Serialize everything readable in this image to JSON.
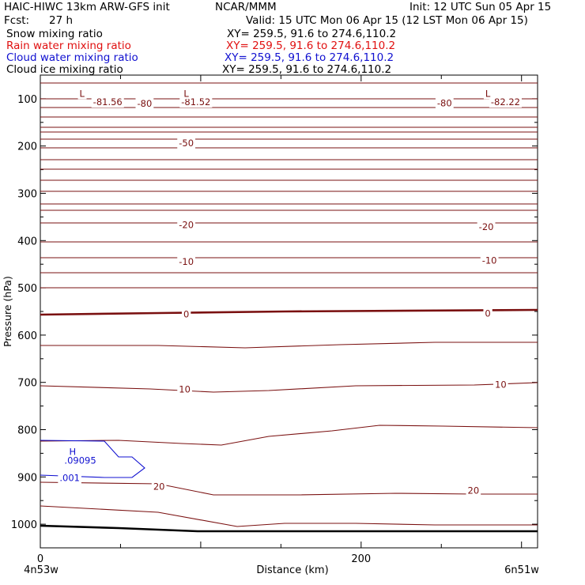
{
  "header": {
    "model": "HAIC-HIWC 13km ARW-GFS init",
    "org": "NCAR/MMM",
    "init": "Init: 12 UTC Sun 05 Apr 15",
    "fcst_label": "Fcst:",
    "fcst_value": "27 h",
    "valid": "Valid: 15 UTC Mon 06 Apr 15 (12 LST Mon 06 Apr 15)",
    "fields": [
      {
        "label": "Snow mixing ratio",
        "xy": "XY= 259.5, 91.6 to 274.6,110.2",
        "color": "#000000"
      },
      {
        "label": "Rain water mixing ratio",
        "xy": "XY= 259.5, 91.6 to 274.6,110.2",
        "color": "#e01010"
      },
      {
        "label": "Cloud water mixing ratio",
        "xy": "XY= 259.5, 91.6 to 274.6,110.2",
        "color": "#1010d0"
      },
      {
        "label": "Cloud ice mixing ratio",
        "xy": "XY= 259.5, 91.6 to 274.6,110.2",
        "color": "#000000"
      }
    ]
  },
  "chart_data": {
    "type": "line",
    "title": "",
    "xlabel": "Distance (km)",
    "ylabel": "Pressure (hPa)",
    "x_ticks": [
      0,
      200
    ],
    "y_ticks": [
      100,
      200,
      300,
      400,
      500,
      600,
      700,
      800,
      900,
      1000
    ],
    "xlim": [
      0,
      310
    ],
    "ylim": [
      1050,
      50
    ],
    "x_endpoints": {
      "left": "4n53w",
      "right": "6n51w"
    },
    "temperature_contour_color": "#7a1010",
    "temperature_labels": [
      {
        "x": 42,
        "p": 107,
        "text": "-81.56"
      },
      {
        "x": 65,
        "p": 110,
        "text": "-80"
      },
      {
        "x": 97,
        "p": 107,
        "text": "-81.52"
      },
      {
        "x": 252,
        "p": 109,
        "text": "-80"
      },
      {
        "x": 290,
        "p": 107,
        "text": "-82.22"
      },
      {
        "x": 91,
        "p": 194,
        "text": "-50"
      },
      {
        "x": 91,
        "p": 367,
        "text": "-20"
      },
      {
        "x": 278,
        "p": 371,
        "text": "-20"
      },
      {
        "x": 91,
        "p": 445,
        "text": "-10"
      },
      {
        "x": 280,
        "p": 442,
        "text": "-10"
      },
      {
        "x": 91,
        "p": 556,
        "text": "0"
      },
      {
        "x": 279,
        "p": 554,
        "text": "0"
      },
      {
        "x": 90,
        "p": 715,
        "text": "10"
      },
      {
        "x": 287,
        "p": 705,
        "text": "10"
      },
      {
        "x": 74,
        "p": 920,
        "text": "20"
      },
      {
        "x": 270,
        "p": 929,
        "text": "20"
      }
    ],
    "low_markers": [
      {
        "x": 26,
        "p": 89,
        "text": "L"
      },
      {
        "x": 91,
        "p": 89,
        "text": "L"
      },
      {
        "x": 279,
        "p": 89,
        "text": "L"
      }
    ],
    "cloud_water_labels": [
      {
        "x": 18,
        "p": 847,
        "text": "H"
      },
      {
        "x": 15,
        "p": 865,
        "text": ".09095"
      },
      {
        "x": 12,
        "p": 902,
        "text": ".001"
      }
    ]
  }
}
